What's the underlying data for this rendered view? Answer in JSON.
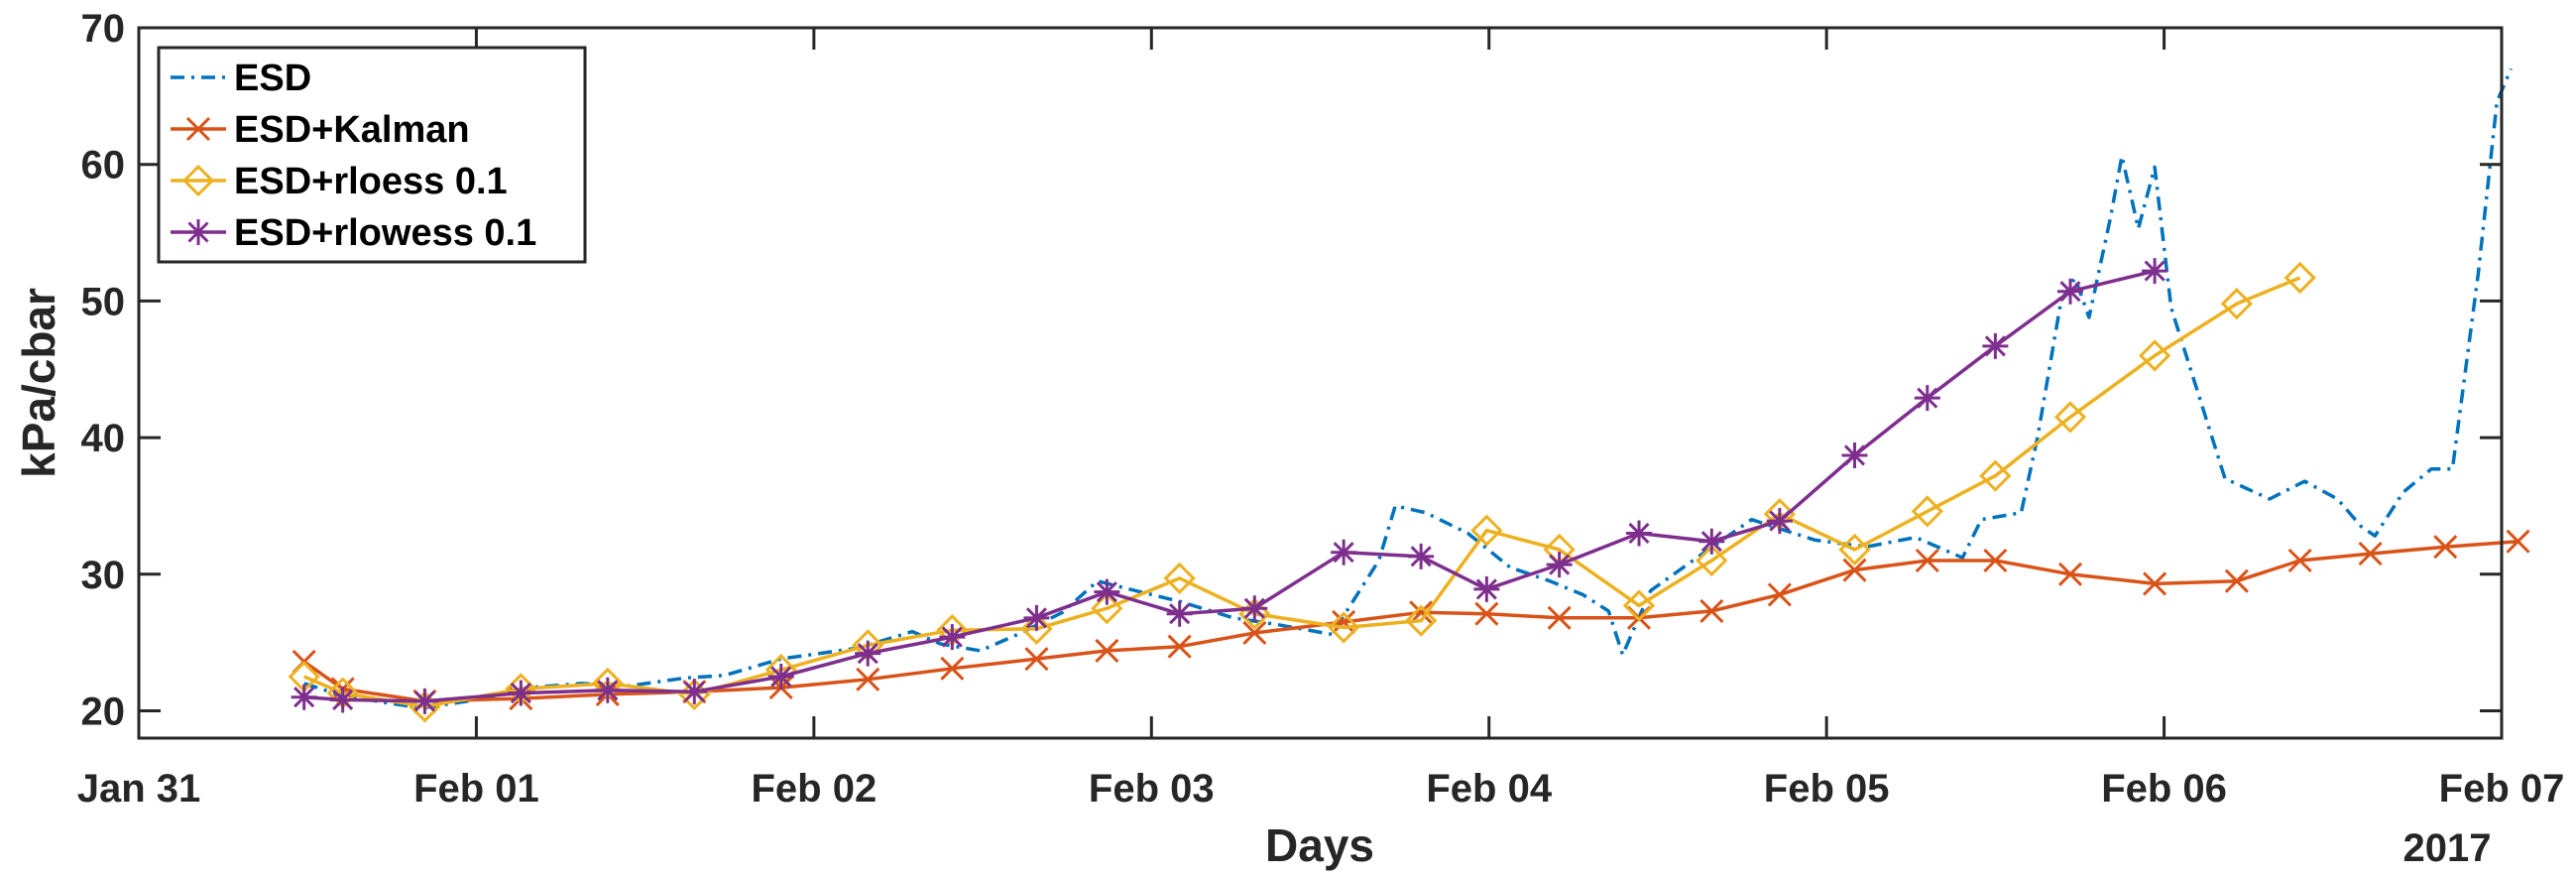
{
  "chart_data": {
    "type": "line",
    "xlabel": "Days",
    "ylabel": "kPa/cbar",
    "x_axis_year_label": "2017",
    "xlim": [
      "2017-01-31T00:00",
      "2017-02-07T00:00"
    ],
    "ylim": [
      18,
      70
    ],
    "x_ticks": [
      {
        "x": "2017-01-31T00:00",
        "label": "Jan 31"
      },
      {
        "x": "2017-02-01T00:00",
        "label": "Feb 01"
      },
      {
        "x": "2017-02-02T00:00",
        "label": "Feb 02"
      },
      {
        "x": "2017-02-03T00:00",
        "label": "Feb 03"
      },
      {
        "x": "2017-02-04T00:00",
        "label": "Feb 04"
      },
      {
        "x": "2017-02-05T00:00",
        "label": "Feb 05"
      },
      {
        "x": "2017-02-06T00:00",
        "label": "Feb 06"
      },
      {
        "x": "2017-02-07T00:00",
        "label": "Feb 07"
      }
    ],
    "y_ticks": [
      20,
      30,
      40,
      50,
      60,
      70
    ],
    "grid": false,
    "legend_position": "top-left",
    "series": [
      {
        "name": "ESD",
        "color": "#0072BD",
        "line_style": "dash-dot",
        "marker": "none",
        "points": [
          [
            "2017-01-31T11:45",
            22.0
          ],
          [
            "2017-01-31T14:10",
            21.2
          ],
          [
            "2017-01-31T17:30",
            20.6
          ],
          [
            "2017-01-31T20:10",
            20.2
          ],
          [
            "2017-02-01T00:00",
            20.8
          ],
          [
            "2017-02-01T03:40",
            21.7
          ],
          [
            "2017-02-01T07:30",
            22.0
          ],
          [
            "2017-02-01T10:40",
            21.8
          ],
          [
            "2017-02-01T14:50",
            22.4
          ],
          [
            "2017-02-01T17:40",
            22.6
          ],
          [
            "2017-02-01T21:40",
            23.8
          ],
          [
            "2017-02-02T03:10",
            24.6
          ],
          [
            "2017-02-02T07:00",
            25.8
          ],
          [
            "2017-02-02T09:00",
            24.9
          ],
          [
            "2017-02-02T11:50",
            24.4
          ],
          [
            "2017-02-02T14:30",
            25.6
          ],
          [
            "2017-02-02T17:40",
            27.2
          ],
          [
            "2017-02-02T20:10",
            29.5
          ],
          [
            "2017-02-02T22:50",
            28.8
          ],
          [
            "2017-02-03T02:00",
            28.0
          ],
          [
            "2017-02-03T05:50",
            26.8
          ],
          [
            "2017-02-03T09:00",
            26.3
          ],
          [
            "2017-02-03T12:50",
            25.6
          ],
          [
            "2017-02-03T16:10",
            31.0
          ],
          [
            "2017-02-03T17:20",
            35.0
          ],
          [
            "2017-02-03T19:30",
            34.5
          ],
          [
            "2017-02-03T22:30",
            33.0
          ],
          [
            "2017-02-04T01:30",
            30.5
          ],
          [
            "2017-02-04T04:20",
            29.5
          ],
          [
            "2017-02-04T06:40",
            28.5
          ],
          [
            "2017-02-04T08:30",
            27.3
          ],
          [
            "2017-02-04T09:30",
            24.1
          ],
          [
            "2017-02-04T11:30",
            28.8
          ],
          [
            "2017-02-04T14:30",
            31.0
          ],
          [
            "2017-02-04T18:40",
            34.0
          ],
          [
            "2017-02-04T23:10",
            32.5
          ],
          [
            "2017-02-05T02:50",
            32.0
          ],
          [
            "2017-02-05T06:20",
            32.7
          ],
          [
            "2017-02-05T09:40",
            31.2
          ],
          [
            "2017-02-05T11:00",
            34.0
          ],
          [
            "2017-02-05T13:50",
            34.5
          ],
          [
            "2017-02-05T15:00",
            40.0
          ],
          [
            "2017-02-05T16:40",
            50.0
          ],
          [
            "2017-02-05T17:40",
            51.7
          ],
          [
            "2017-02-05T18:40",
            48.8
          ],
          [
            "2017-02-05T20:10",
            56.0
          ],
          [
            "2017-02-05T21:00",
            60.6
          ],
          [
            "2017-02-05T22:10",
            55.3
          ],
          [
            "2017-02-05T23:20",
            59.8
          ],
          [
            "2017-02-06T00:30",
            49.5
          ],
          [
            "2017-02-06T02:30",
            43.0
          ],
          [
            "2017-02-06T04:20",
            37.0
          ],
          [
            "2017-02-06T07:30",
            35.5
          ],
          [
            "2017-02-06T10:00",
            36.8
          ],
          [
            "2017-02-06T12:20",
            35.5
          ],
          [
            "2017-02-06T14:00",
            33.5
          ],
          [
            "2017-02-06T15:00",
            32.8
          ],
          [
            "2017-02-06T17:00",
            36.0
          ],
          [
            "2017-02-06T19:00",
            37.7
          ],
          [
            "2017-02-06T20:30",
            37.7
          ],
          [
            "2017-02-06T22:20",
            52.0
          ],
          [
            "2017-02-06T23:40",
            64.6
          ],
          [
            "2017-02-07T00:40",
            67.0
          ]
        ]
      },
      {
        "name": "ESD+Kalman",
        "color": "#D95319",
        "line_style": "solid",
        "marker": "x",
        "points": [
          [
            "2017-01-31T11:45",
            23.6
          ],
          [
            "2017-01-31T14:30",
            21.6
          ],
          [
            "2017-01-31T20:20",
            20.7
          ],
          [
            "2017-02-01T03:10",
            20.9
          ],
          [
            "2017-02-01T09:20",
            21.2
          ],
          [
            "2017-02-01T15:30",
            21.4
          ],
          [
            "2017-02-01T21:40",
            21.7
          ],
          [
            "2017-02-02T03:50",
            22.3
          ],
          [
            "2017-02-02T09:50",
            23.1
          ],
          [
            "2017-02-02T15:50",
            23.8
          ],
          [
            "2017-02-02T20:50",
            24.4
          ],
          [
            "2017-02-03T02:00",
            24.7
          ],
          [
            "2017-02-03T07:20",
            25.7
          ],
          [
            "2017-02-03T13:40",
            26.5
          ],
          [
            "2017-02-03T19:10",
            27.2
          ],
          [
            "2017-02-03T23:50",
            27.1
          ],
          [
            "2017-02-04T05:00",
            26.8
          ],
          [
            "2017-02-04T10:40",
            26.8
          ],
          [
            "2017-02-04T15:50",
            27.3
          ],
          [
            "2017-02-04T20:40",
            28.5
          ],
          [
            "2017-02-05T02:00",
            30.3
          ],
          [
            "2017-02-05T07:10",
            31.0
          ],
          [
            "2017-02-05T12:00",
            31.0
          ],
          [
            "2017-02-05T17:20",
            30.0
          ],
          [
            "2017-02-05T23:20",
            29.3
          ],
          [
            "2017-02-06T05:10",
            29.5
          ],
          [
            "2017-02-06T09:40",
            31.0
          ],
          [
            "2017-02-06T14:40",
            31.5
          ],
          [
            "2017-02-06T20:00",
            32.0
          ],
          [
            "2017-02-07T01:10",
            32.4
          ]
        ]
      },
      {
        "name": "ESD+rloess 0.1",
        "color": "#EDB120",
        "line_style": "solid",
        "marker": "diamond",
        "points": [
          [
            "2017-01-31T11:45",
            22.5
          ],
          [
            "2017-01-31T14:30",
            21.3
          ],
          [
            "2017-01-31T20:20",
            20.3
          ],
          [
            "2017-02-01T03:10",
            21.6
          ],
          [
            "2017-02-01T09:20",
            22.0
          ],
          [
            "2017-02-01T15:30",
            21.2
          ],
          [
            "2017-02-01T21:40",
            23.0
          ],
          [
            "2017-02-02T03:50",
            24.8
          ],
          [
            "2017-02-02T09:50",
            25.9
          ],
          [
            "2017-02-02T15:50",
            26.0
          ],
          [
            "2017-02-02T20:50",
            27.5
          ],
          [
            "2017-02-03T02:00",
            29.7
          ],
          [
            "2017-02-03T07:20",
            27.1
          ],
          [
            "2017-02-03T13:40",
            26.1
          ],
          [
            "2017-02-03T19:10",
            26.6
          ],
          [
            "2017-02-03T23:50",
            33.2
          ],
          [
            "2017-02-04T05:00",
            31.8
          ],
          [
            "2017-02-04T10:40",
            27.7
          ],
          [
            "2017-02-04T15:50",
            31.0
          ],
          [
            "2017-02-04T20:40",
            34.4
          ],
          [
            "2017-02-05T02:00",
            31.8
          ],
          [
            "2017-02-05T07:10",
            34.6
          ],
          [
            "2017-02-05T12:00",
            37.2
          ],
          [
            "2017-02-05T17:20",
            41.5
          ],
          [
            "2017-02-05T23:20",
            46.0
          ],
          [
            "2017-02-06T05:10",
            49.8
          ],
          [
            "2017-02-06T09:40",
            51.7
          ]
        ]
      },
      {
        "name": "ESD+rlowess 0.1",
        "color": "#7E2F8E",
        "line_style": "solid",
        "marker": "asterisk",
        "points": [
          [
            "2017-01-31T11:45",
            21.0
          ],
          [
            "2017-01-31T14:30",
            20.8
          ],
          [
            "2017-01-31T20:20",
            20.7
          ],
          [
            "2017-02-01T03:10",
            21.3
          ],
          [
            "2017-02-01T09:20",
            21.5
          ],
          [
            "2017-02-01T15:30",
            21.4
          ],
          [
            "2017-02-01T21:40",
            22.5
          ],
          [
            "2017-02-02T03:50",
            24.2
          ],
          [
            "2017-02-02T09:50",
            25.4
          ],
          [
            "2017-02-02T15:50",
            26.8
          ],
          [
            "2017-02-02T20:50",
            28.7
          ],
          [
            "2017-02-03T02:00",
            27.1
          ],
          [
            "2017-02-03T07:20",
            27.5
          ],
          [
            "2017-02-03T13:40",
            31.6
          ],
          [
            "2017-02-03T19:10",
            31.3
          ],
          [
            "2017-02-03T23:50",
            28.9
          ],
          [
            "2017-02-04T05:00",
            30.7
          ],
          [
            "2017-02-04T10:40",
            33.0
          ],
          [
            "2017-02-04T15:50",
            32.4
          ],
          [
            "2017-02-04T20:40",
            33.9
          ],
          [
            "2017-02-05T02:00",
            38.7
          ],
          [
            "2017-02-05T07:10",
            42.9
          ],
          [
            "2017-02-05T12:00",
            46.7
          ],
          [
            "2017-02-05T17:20",
            50.7
          ],
          [
            "2017-02-05T23:20",
            52.2
          ]
        ]
      }
    ]
  }
}
